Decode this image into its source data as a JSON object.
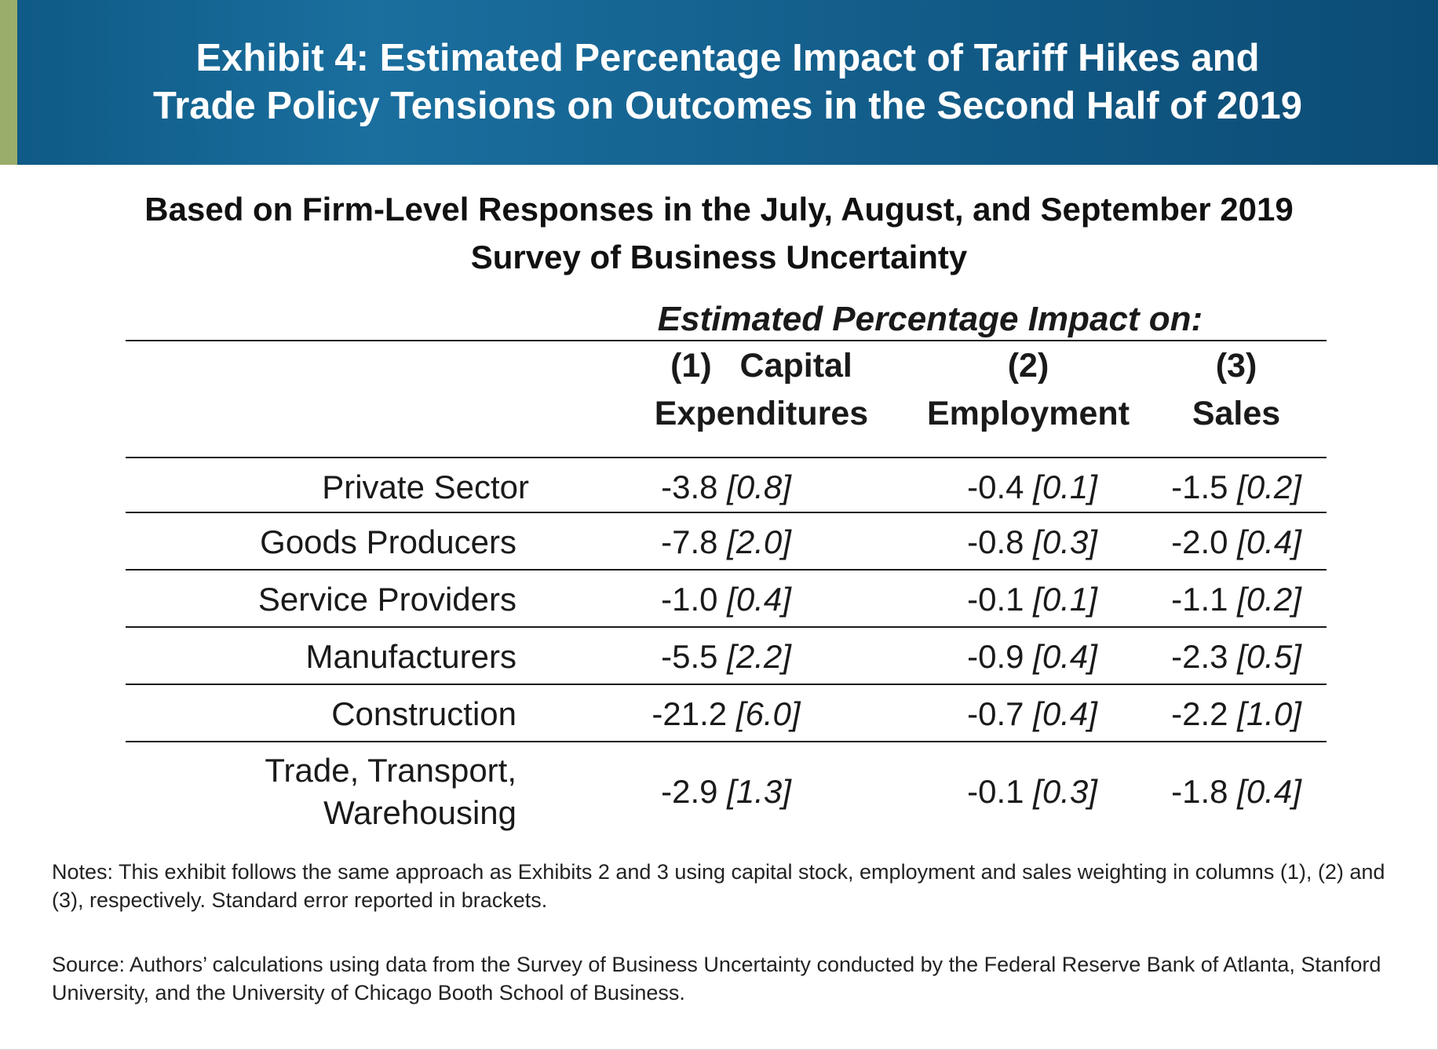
{
  "header": {
    "title": "Exhibit 4: Estimated Percentage Impact of Tariff Hikes and\nTrade Policy Tensions on Outcomes in the Second Half of 2019"
  },
  "subtitle": "Based on Firm-Level Responses in the July, August, and September 2019\nSurvey of Business Uncertainty",
  "colors": {
    "header_bg": "#135d8a",
    "accent_bar": "#9aad6a",
    "text": "#1a1a1a"
  },
  "chart_data": {
    "type": "table",
    "group_header": "Estimated Percentage Impact on:",
    "columns": [
      {
        "number": "(1)",
        "label": "Capital",
        "label2": "Expenditures"
      },
      {
        "number": "(2)",
        "label": "Employment"
      },
      {
        "number": "(3)",
        "label": "Sales"
      }
    ],
    "rows": [
      {
        "label": "Private Sector",
        "values": [
          {
            "v": "-3.8",
            "se": "[0.8]"
          },
          {
            "v": "-0.4",
            "se": "[0.1]"
          },
          {
            "v": "-1.5",
            "se": "[0.2]"
          }
        ]
      },
      {
        "label": "Goods Producers",
        "values": [
          {
            "v": "-7.8",
            "se": "[2.0]"
          },
          {
            "v": "-0.8",
            "se": "[0.3]"
          },
          {
            "v": "-2.0",
            "se": "[0.4]"
          }
        ]
      },
      {
        "label": "Service Providers",
        "values": [
          {
            "v": "-1.0",
            "se": "[0.4]"
          },
          {
            "v": "-0.1",
            "se": "[0.1]"
          },
          {
            "v": "-1.1",
            "se": "[0.2]"
          }
        ]
      },
      {
        "label": "Manufacturers",
        "values": [
          {
            "v": "-5.5",
            "se": "[2.2]"
          },
          {
            "v": "-0.9",
            "se": "[0.4]"
          },
          {
            "v": "-2.3",
            "se": "[0.5]"
          }
        ]
      },
      {
        "label": "Construction",
        "values": [
          {
            "v": "-21.2",
            "se": "[6.0]"
          },
          {
            "v": "-0.7",
            "se": "[0.4]"
          },
          {
            "v": "-2.2",
            "se": "[1.0]"
          }
        ]
      },
      {
        "label": "Trade, Transport,",
        "label2": "Warehousing",
        "values": [
          {
            "v": "-2.9",
            "se": "[1.3]"
          },
          {
            "v": "-0.1",
            "se": "[0.3]"
          },
          {
            "v": "-1.8",
            "se": "[0.4]"
          }
        ]
      }
    ]
  },
  "notes": {
    "text": "Notes: This exhibit follows the same approach as Exhibits 2 and 3 using capital stock, employment and sales weighting in columns (1), (2) and (3), respectively. Standard error reported in brackets.",
    "source": "Source: Authors’ calculations using data from the Survey of Business Uncertainty conducted by the Federal Reserve Bank of Atlanta, Stanford University, and the University of Chicago Booth School of Business."
  }
}
